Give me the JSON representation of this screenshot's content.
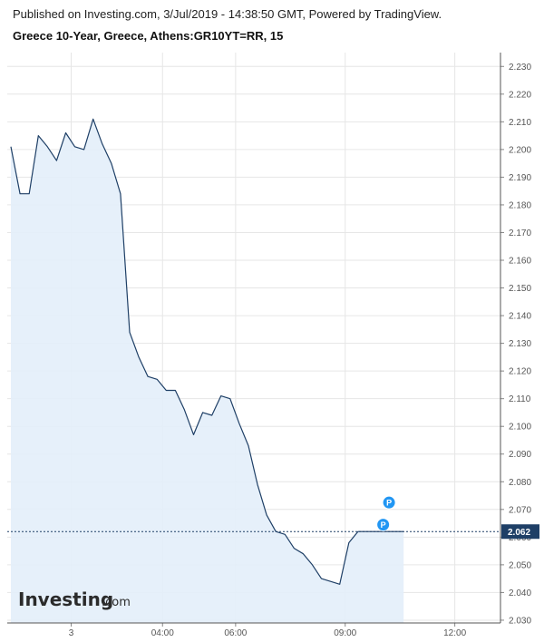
{
  "header": {
    "published": "Published on Investing.com, 3/Jul/2019 - 14:38:50 GMT, Powered by TradingView.",
    "title": "Greece 10-Year, Greece, Athens:GR10YT=RR, 15"
  },
  "logo": {
    "brand": "Investing",
    "suffix": ".com"
  },
  "colors": {
    "line": "#1e3f66",
    "fill": "#e3eefa",
    "grid": "#e6e6e6",
    "last_price_bg": "#1e3f66",
    "marker": "#2196f3"
  },
  "markers": [
    {
      "label": "P",
      "x": 10.2,
      "y": 2.0725
    },
    {
      "label": "P",
      "x": 10.04,
      "y": 2.0645
    }
  ],
  "chart_data": {
    "type": "area",
    "title": "Greece 10-Year, Greece, Athens:GR10YT=RR, 15",
    "x_unit": "hours (3 Jul 2019)",
    "xlim": [
      -0.25,
      13.25
    ],
    "ylim": [
      2.029,
      2.235
    ],
    "yticks": [
      "2.030",
      "2.040",
      "2.050",
      "2.060",
      "2.070",
      "2.080",
      "2.090",
      "2.100",
      "2.110",
      "2.120",
      "2.130",
      "2.140",
      "2.150",
      "2.160",
      "2.170",
      "2.180",
      "2.190",
      "2.200",
      "2.210",
      "2.220",
      "2.230"
    ],
    "xticks": [
      {
        "label": "3",
        "x": 1.5
      },
      {
        "label": "04:00",
        "x": 4.0
      },
      {
        "label": "06:00",
        "x": 6.0
      },
      {
        "label": "09:00",
        "x": 9.0
      },
      {
        "label": "12:00",
        "x": 12.0
      }
    ],
    "last_value": "2.062",
    "grid": true,
    "series": [
      {
        "x": [
          -0.15,
          0.1,
          0.35,
          0.6,
          0.85,
          1.1,
          1.35,
          1.6,
          1.85,
          2.1,
          2.35,
          2.6,
          2.85,
          3.1,
          3.35,
          3.6,
          3.85,
          4.1,
          4.35,
          4.6,
          4.85,
          5.1,
          5.35,
          5.6,
          5.85,
          6.1,
          6.35,
          6.6,
          6.85,
          7.1,
          7.35,
          7.6,
          7.85,
          8.1,
          8.35,
          8.6,
          8.85,
          9.1,
          9.35,
          9.6,
          9.85,
          10.1,
          10.35,
          10.6
        ],
        "y": [
          2.201,
          2.184,
          2.184,
          2.205,
          2.201,
          2.196,
          2.206,
          2.201,
          2.2,
          2.211,
          2.202,
          2.195,
          2.184,
          2.134,
          2.125,
          2.118,
          2.117,
          2.113,
          2.113,
          2.106,
          2.097,
          2.105,
          2.104,
          2.111,
          2.11,
          2.101,
          2.093,
          2.079,
          2.068,
          2.062,
          2.061,
          2.056,
          2.054,
          2.05,
          2.045,
          2.044,
          2.043,
          2.058,
          2.062,
          2.062,
          2.062,
          2.062,
          2.062,
          2.062
        ]
      }
    ]
  }
}
